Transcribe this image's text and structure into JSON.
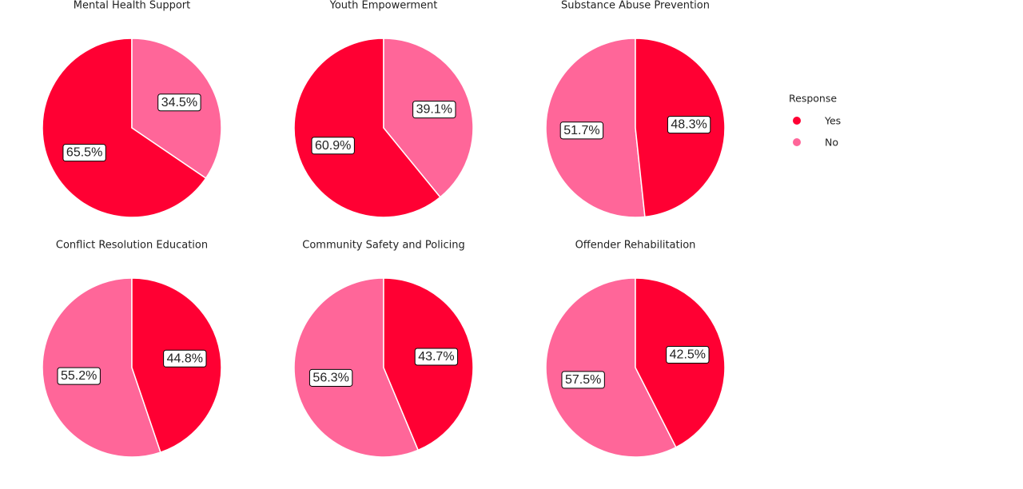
{
  "chart_data": [
    {
      "type": "pie",
      "title": "Mental Health Support",
      "categories": [
        "Yes",
        "No"
      ],
      "values": [
        65.5,
        34.5
      ],
      "value_labels": [
        "65.5%",
        "34.5%"
      ],
      "colors": [
        "#ff0033",
        "#ff6699"
      ]
    },
    {
      "type": "pie",
      "title": "Youth Empowerment",
      "categories": [
        "Yes",
        "No"
      ],
      "values": [
        60.9,
        39.1
      ],
      "value_labels": [
        "60.9%",
        "39.1%"
      ],
      "colors": [
        "#ff0033",
        "#ff6699"
      ]
    },
    {
      "type": "pie",
      "title": "Substance Abuse Prevention",
      "categories": [
        "No",
        "Yes"
      ],
      "values": [
        51.7,
        48.3
      ],
      "value_labels": [
        "51.7%",
        "48.3%"
      ],
      "colors": [
        "#ff6699",
        "#ff0033"
      ]
    },
    {
      "type": "pie",
      "title": "Conflict Resolution Education",
      "categories": [
        "No",
        "Yes"
      ],
      "values": [
        55.2,
        44.8
      ],
      "value_labels": [
        "55.2%",
        "44.8%"
      ],
      "colors": [
        "#ff6699",
        "#ff0033"
      ]
    },
    {
      "type": "pie",
      "title": "Community Safety and Policing",
      "categories": [
        "No",
        "Yes"
      ],
      "values": [
        56.3,
        43.7
      ],
      "value_labels": [
        "56.3%",
        "43.7%"
      ],
      "colors": [
        "#ff6699",
        "#ff0033"
      ]
    },
    {
      "type": "pie",
      "title": "Offender Rehabilitation",
      "categories": [
        "No",
        "Yes"
      ],
      "values": [
        57.5,
        42.5
      ],
      "value_labels": [
        "57.5%",
        "42.5%"
      ],
      "colors": [
        "#ff6699",
        "#ff0033"
      ]
    }
  ],
  "legend": {
    "title": "Response",
    "labels": [
      "Yes",
      "No"
    ],
    "colors": [
      "#ff0033",
      "#ff6699"
    ]
  }
}
